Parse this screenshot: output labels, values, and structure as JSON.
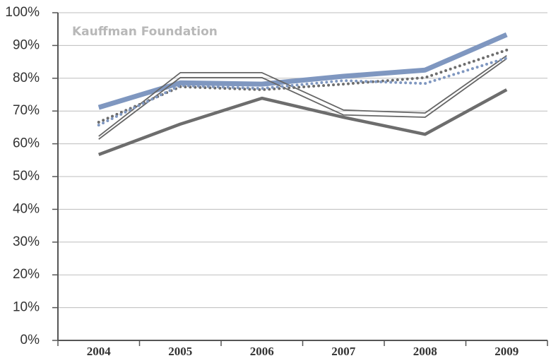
{
  "chart_data": {
    "type": "line",
    "annotation": "Kauffman Foundation",
    "categories": [
      "2004",
      "2005",
      "2006",
      "2007",
      "2008",
      "2009"
    ],
    "ylim": [
      0,
      100
    ],
    "yticks": [
      {
        "value": 0,
        "label": "0%"
      },
      {
        "value": 10,
        "label": "10%"
      },
      {
        "value": 20,
        "label": "20%"
      },
      {
        "value": 30,
        "label": "30%"
      },
      {
        "value": 40,
        "label": "40%"
      },
      {
        "value": 50,
        "label": "50%"
      },
      {
        "value": 60,
        "label": "60%"
      },
      {
        "value": 70,
        "label": "70%"
      },
      {
        "value": 80,
        "label": "80%"
      },
      {
        "value": 90,
        "label": "90%"
      },
      {
        "value": 100,
        "label": "100%"
      }
    ],
    "grid": true,
    "series": [
      {
        "color": "#7f97c0",
        "width": 7,
        "dash": "solid",
        "values": [
          71.1,
          78.6,
          78.2,
          80.6,
          82.5,
          93.3
        ]
      },
      {
        "color": "#6d6d6d",
        "width": 4.5,
        "dash": "solid",
        "values": [
          56.7,
          66,
          73.9,
          68.1,
          62.9,
          76.5
        ]
      },
      {
        "color": "#666666",
        "width": 1.8,
        "dash": "solid",
        "values": [
          62.3,
          81.7,
          81.7,
          70.3,
          69.4,
          86.9
        ]
      },
      {
        "color": "#666666",
        "width": 1.8,
        "dash": "solid",
        "values": [
          61.4,
          80.2,
          80.2,
          68.8,
          68.1,
          86
        ]
      },
      {
        "color": "#6d6d6d",
        "width": 4,
        "dash": "dotted",
        "values": [
          66.6,
          77.4,
          76.5,
          78.2,
          80.2,
          88.6
        ]
      },
      {
        "color": "#7f97c0",
        "width": 4,
        "dash": "dotted",
        "values": [
          65.7,
          77.8,
          76.9,
          79.3,
          78.4,
          86.2
        ]
      }
    ]
  }
}
